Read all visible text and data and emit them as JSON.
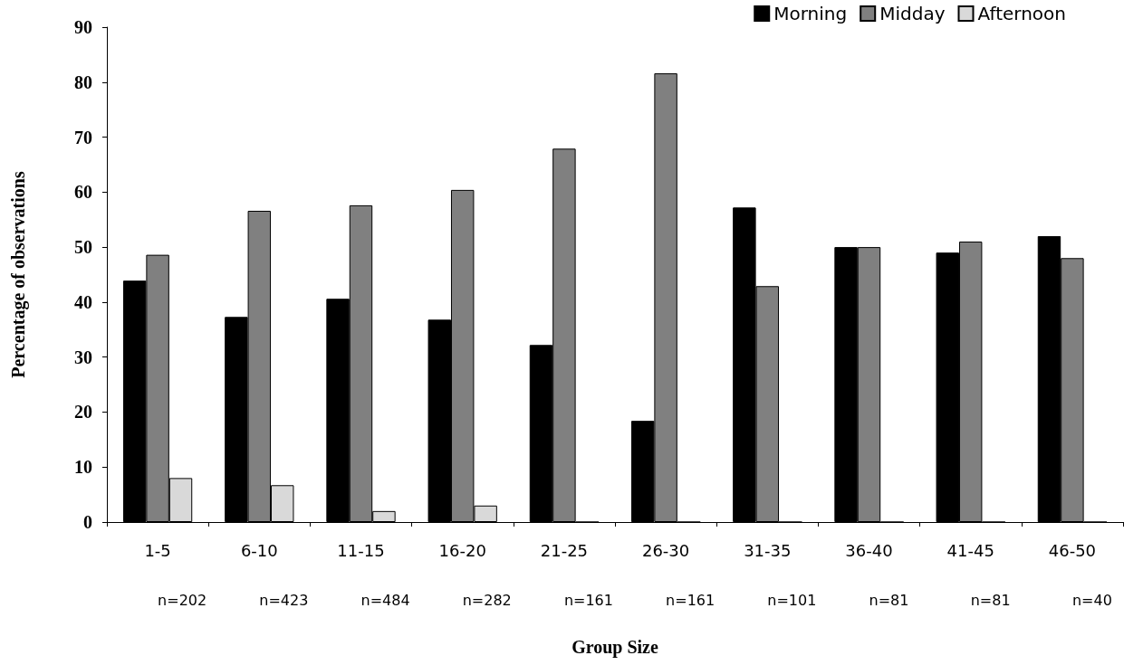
{
  "chart_data": {
    "type": "bar",
    "xlabel": "Group Size",
    "ylabel": "Percentage of observations",
    "categories": [
      "1-5",
      "6-10",
      "11-15",
      "16-20",
      "21-25",
      "26-30",
      "31-35",
      "36-40",
      "41-45",
      "46-50"
    ],
    "series": [
      {
        "name": "Morning",
        "color": "#000000",
        "values": [
          43.9,
          37.3,
          40.6,
          36.8,
          32.2,
          18.4,
          57.2,
          50,
          49,
          52
        ]
      },
      {
        "name": "Midday",
        "color": "#808080",
        "values": [
          48.6,
          56.6,
          57.6,
          60.4,
          67.9,
          81.6,
          42.9,
          50,
          51,
          48
        ]
      },
      {
        "name": "Afternoon",
        "color": "#d9d9d9",
        "values": [
          8,
          6.7,
          2,
          3,
          0,
          0,
          0,
          0,
          0,
          0
        ]
      }
    ],
    "annotations": [
      "n=202",
      "n=423",
      "n=484",
      "n=282",
      "n=161",
      "n=161",
      "n=101",
      "n=81",
      "n=81",
      "n=40"
    ],
    "ylim": [
      0,
      90
    ],
    "yticks": [
      0,
      10,
      20,
      30,
      40,
      50,
      60,
      70,
      80,
      90
    ],
    "grid": false,
    "legend": "top right"
  }
}
